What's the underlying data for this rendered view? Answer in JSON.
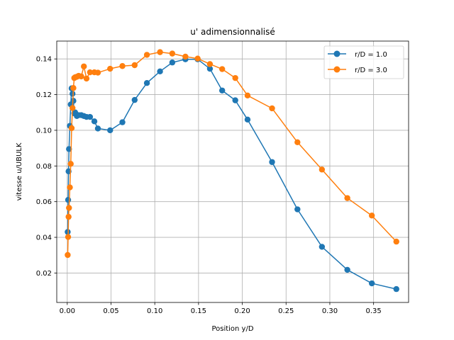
{
  "chart_data": {
    "type": "line",
    "title": "u' adimensionnalisé",
    "xlabel": "Position y/D",
    "ylabel": "vitesse u/UBULK",
    "xlim": [
      -0.012,
      0.39
    ],
    "ylim": [
      0.0035,
      0.15
    ],
    "xticks": [
      0.0,
      0.05,
      0.1,
      0.15,
      0.2,
      0.25,
      0.3,
      0.35
    ],
    "xtick_labels": [
      "0.00",
      "0.05",
      "0.10",
      "0.15",
      "0.20",
      "0.25",
      "0.30",
      "0.35"
    ],
    "yticks": [
      0.02,
      0.04,
      0.06,
      0.08,
      0.1,
      0.12,
      0.14
    ],
    "ytick_labels": [
      "0.02",
      "0.04",
      "0.06",
      "0.08",
      "0.10",
      "0.12",
      "0.14"
    ],
    "grid": true,
    "legend_position": "top-right",
    "series": [
      {
        "name": "r/D = 1.0",
        "color": "#1f77b4",
        "x": [
          0.0005,
          0.001,
          0.0015,
          0.002,
          0.003,
          0.004,
          0.005,
          0.006,
          0.007,
          0.008,
          0.009,
          0.011,
          0.013,
          0.016,
          0.019,
          0.022,
          0.026,
          0.031,
          0.035,
          0.049,
          0.063,
          0.077,
          0.091,
          0.106,
          0.12,
          0.135,
          0.149,
          0.163,
          0.177,
          0.192,
          0.206,
          0.234,
          0.263,
          0.291,
          0.32,
          0.348,
          0.376
        ],
        "y": [
          0.043,
          0.061,
          0.077,
          0.0895,
          0.1025,
          0.1145,
          0.1235,
          0.1205,
          0.1165,
          0.1095,
          0.11,
          0.108,
          0.1085,
          0.1085,
          0.108,
          0.1075,
          0.1075,
          0.105,
          0.101,
          0.1,
          0.1045,
          0.117,
          0.1265,
          0.133,
          0.138,
          0.1398,
          0.1398,
          0.1345,
          0.1223,
          0.1168,
          0.106,
          0.0822,
          0.0557,
          0.0347,
          0.0218,
          0.0142,
          0.011
        ]
      },
      {
        "name": "r/D = 3.0",
        "color": "#ff7f0e",
        "x": [
          0.0005,
          0.001,
          0.0015,
          0.002,
          0.003,
          0.004,
          0.005,
          0.006,
          0.007,
          0.008,
          0.009,
          0.011,
          0.013,
          0.016,
          0.019,
          0.022,
          0.026,
          0.031,
          0.035,
          0.049,
          0.063,
          0.077,
          0.091,
          0.106,
          0.12,
          0.135,
          0.149,
          0.163,
          0.177,
          0.192,
          0.206,
          0.234,
          0.263,
          0.291,
          0.32,
          0.348,
          0.376
        ],
        "y": [
          0.0301,
          0.0402,
          0.0515,
          0.0565,
          0.068,
          0.0812,
          0.1012,
          0.1125,
          0.1237,
          0.1293,
          0.1297,
          0.13,
          0.1305,
          0.1302,
          0.1358,
          0.129,
          0.1325,
          0.1325,
          0.1323,
          0.1345,
          0.136,
          0.1365,
          0.1423,
          0.1438,
          0.143,
          0.1413,
          0.1402,
          0.1371,
          0.1343,
          0.1293,
          0.1195,
          0.1123,
          0.0933,
          0.078,
          0.062,
          0.0522,
          0.0376
        ]
      }
    ]
  }
}
